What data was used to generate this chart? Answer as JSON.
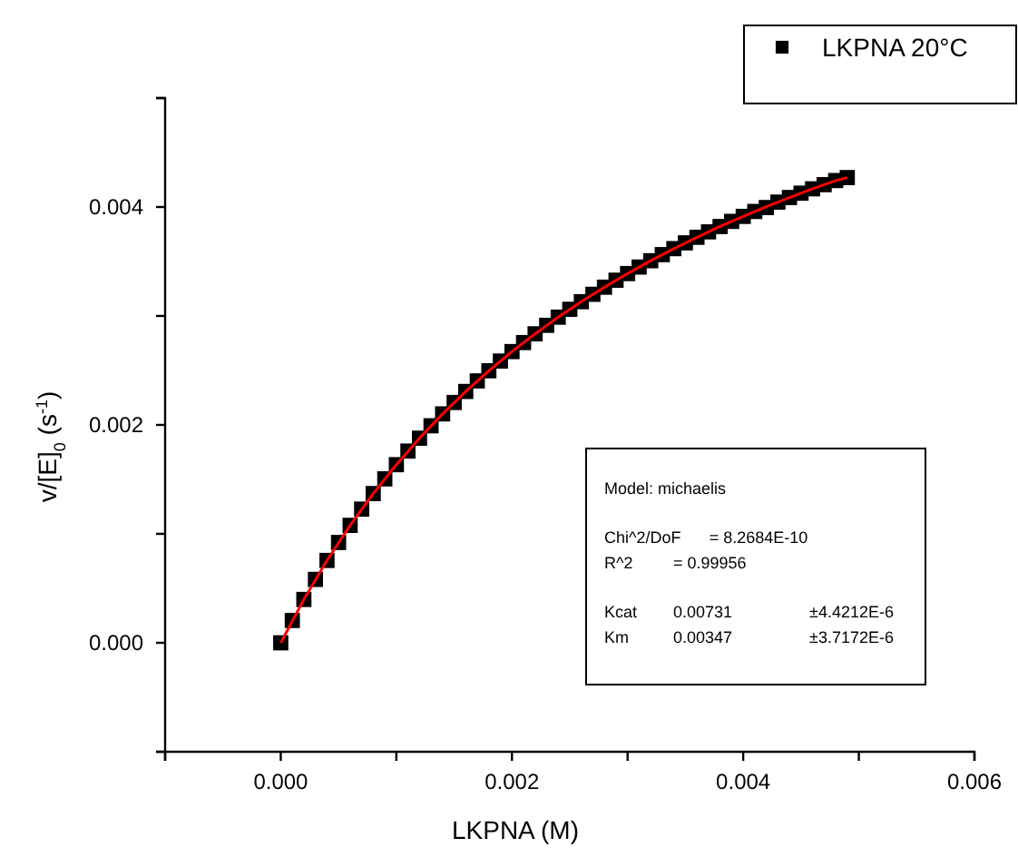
{
  "chart_data": {
    "type": "scatter",
    "xlabel": "LKPNA (M)",
    "ylabel": "v/[E]$_{0}$ (s$^{-1}$)",
    "xlim": [
      -0.001,
      0.006
    ],
    "ylim": [
      -0.001,
      0.005
    ],
    "xticks": [
      {
        "value": -0.001,
        "label": null
      },
      {
        "value": 0,
        "label": "0.000"
      },
      {
        "value": 0.001,
        "label": null
      },
      {
        "value": 0.002,
        "label": "0.002"
      },
      {
        "value": 0.003,
        "label": null
      },
      {
        "value": 0.004,
        "label": "0.004"
      },
      {
        "value": 0.005,
        "label": null
      },
      {
        "value": 0.006,
        "label": "0.006"
      }
    ],
    "yticks": [
      {
        "value": -0.001,
        "label": null
      },
      {
        "value": 0,
        "label": "0.000"
      },
      {
        "value": 0.001,
        "label": null
      },
      {
        "value": 0.002,
        "label": "0.002"
      },
      {
        "value": 0.003,
        "label": null
      },
      {
        "value": 0.004,
        "label": "0.004"
      },
      {
        "value": 0.005,
        "label": null
      }
    ],
    "grid": false,
    "legend": "top right",
    "marker": "square",
    "series": [
      {
        "name": "LKPNA 20°C",
        "color": "#000000",
        "x": [
          0,
          0.0001,
          0.0002,
          0.0003,
          0.0004,
          0.0005,
          0.0006,
          0.0007,
          0.0008,
          0.0009,
          0.001,
          0.0011,
          0.0012,
          0.0013,
          0.0014,
          0.0015,
          0.0016,
          0.0017,
          0.0018,
          0.0019,
          0.002,
          0.0021,
          0.0022,
          0.0023,
          0.0024,
          0.0025,
          0.0026,
          0.0027,
          0.0028,
          0.0029,
          0.003,
          0.0031,
          0.0032,
          0.0033,
          0.0034,
          0.0035,
          0.0036,
          0.0037,
          0.0038,
          0.0039,
          0.004,
          0.0041,
          0.0042,
          0.0043,
          0.0044,
          0.0045,
          0.0046,
          0.0047,
          0.0048,
          0.0049
        ],
        "values": [
          0,
          0.000205,
          0.000398,
          0.000582,
          0.000756,
          0.000921,
          0.001078,
          0.001227,
          0.00137,
          0.001505,
          0.001635,
          0.00176,
          0.001878,
          0.001992,
          0.002101,
          0.002206,
          0.002307,
          0.002404,
          0.002497,
          0.002586,
          0.002673,
          0.002756,
          0.002836,
          0.002914,
          0.002989,
          0.003061,
          0.003131,
          0.003199,
          0.003264,
          0.003328,
          0.003389,
          0.003449,
          0.003507,
          0.003563,
          0.003618,
          0.003671,
          0.003722,
          0.003772,
          0.003821,
          0.003868,
          0.003914,
          0.003959,
          0.003995,
          0.004045,
          0.004087,
          0.004127,
          0.004167,
          0.004205,
          0.004243,
          0.00427
        ]
      },
      {
        "type": "line",
        "color": "#ff0000",
        "marker": "none",
        "line_style": "solid",
        "x": [
          0,
          0.0002,
          0.0004,
          0.0006,
          0.0008,
          0.001,
          0.0012,
          0.0014,
          0.0016,
          0.0018,
          0.002,
          0.0022,
          0.0024,
          0.0026,
          0.0028,
          0.003,
          0.0032,
          0.0034,
          0.0036,
          0.0038,
          0.004,
          0.0042,
          0.0044,
          0.0046,
          0.0048,
          0.0049
        ],
        "values": [
          0,
          0.000398,
          0.000756,
          0.001078,
          0.00137,
          0.001635,
          0.001878,
          0.002101,
          0.002307,
          0.002497,
          0.002673,
          0.002836,
          0.002989,
          0.003131,
          0.003264,
          0.003389,
          0.003507,
          0.003618,
          0.003722,
          0.003821,
          0.003914,
          0.004003,
          0.004087,
          0.004167,
          0.004243,
          0.00427
        ]
      }
    ],
    "annotations": [
      "Model: michaelis",
      "Chi^2/DoF  = 8.2684E-10",
      "R^2  = 0.99956",
      "Kcat  0.00731  ±4.4212E-6",
      "Km  0.00347  ±3.7172E-6"
    ]
  }
}
